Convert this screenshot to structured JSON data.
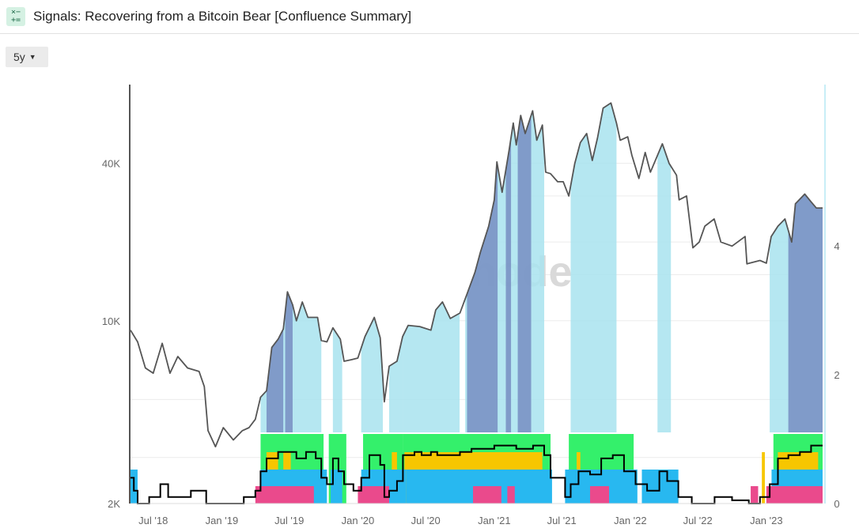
{
  "header": {
    "title": "Signals: Recovering from a Bitcoin Bear [Confluence Summary]",
    "icon": "calculator-icon"
  },
  "controls": {
    "range_label": "5y",
    "range_icon": "caret-down-icon"
  },
  "watermark": "glassnode",
  "colors": {
    "price": "#555555",
    "confluence": "#000000",
    "band_light": "#a8e3ef",
    "band_dark": "#7a92c4",
    "strip_green": "#34f06b",
    "strip_yellow": "#f7c600",
    "strip_blue": "#28b8f0",
    "strip_pink": "#ea4a8c"
  },
  "chart_data": {
    "type": "line",
    "y_scale": "log",
    "y_ticks": [
      "2K",
      "10K",
      "40K"
    ],
    "y_tick_values": [
      2000,
      10000,
      40000
    ],
    "y2_ticks": [
      "0",
      "2",
      "4"
    ],
    "y2_tick_values": [
      0,
      2,
      4
    ],
    "x_ticks": [
      "Jul '18",
      "Jan '19",
      "Jul '19",
      "Jan '20",
      "Jul '20",
      "Jan '21",
      "Jul '21",
      "Jan '22",
      "Jul '22",
      "Jan '23"
    ],
    "x_tick_dates": [
      "2018-07-01",
      "2019-01-01",
      "2019-07-01",
      "2020-01-01",
      "2020-07-01",
      "2021-01-01",
      "2021-07-01",
      "2022-01-01",
      "2022-07-01",
      "2023-01-01"
    ],
    "x_range": [
      "2018-05-01",
      "2023-06-01"
    ],
    "y_range": [
      2000,
      80000
    ],
    "y2_range": [
      0,
      6.5
    ],
    "series": [
      {
        "kind": "price",
        "points": [
          [
            "2018-05-01",
            9200
          ],
          [
            "2018-05-20",
            8300
          ],
          [
            "2018-06-10",
            6600
          ],
          [
            "2018-07-01",
            6300
          ],
          [
            "2018-07-25",
            8200
          ],
          [
            "2018-08-15",
            6300
          ],
          [
            "2018-09-05",
            7300
          ],
          [
            "2018-10-01",
            6600
          ],
          [
            "2018-11-01",
            6400
          ],
          [
            "2018-11-15",
            5600
          ],
          [
            "2018-11-25",
            3800
          ],
          [
            "2018-12-15",
            3300
          ],
          [
            "2019-01-05",
            3900
          ],
          [
            "2019-02-01",
            3500
          ],
          [
            "2019-02-25",
            3800
          ],
          [
            "2019-03-15",
            3900
          ],
          [
            "2019-04-01",
            4200
          ],
          [
            "2019-04-15",
            5100
          ],
          [
            "2019-05-01",
            5400
          ],
          [
            "2019-05-15",
            7900
          ],
          [
            "2019-06-01",
            8500
          ],
          [
            "2019-06-15",
            9300
          ],
          [
            "2019-06-26",
            12900
          ],
          [
            "2019-07-10",
            11500
          ],
          [
            "2019-07-20",
            10000
          ],
          [
            "2019-08-05",
            11800
          ],
          [
            "2019-08-20",
            10300
          ],
          [
            "2019-09-15",
            10300
          ],
          [
            "2019-09-25",
            8400
          ],
          [
            "2019-10-10",
            8300
          ],
          [
            "2019-10-26",
            9400
          ],
          [
            "2019-11-15",
            8500
          ],
          [
            "2019-11-25",
            7000
          ],
          [
            "2019-12-15",
            7100
          ],
          [
            "2020-01-01",
            7200
          ],
          [
            "2020-01-20",
            8700
          ],
          [
            "2020-02-14",
            10300
          ],
          [
            "2020-03-01",
            8600
          ],
          [
            "2020-03-12",
            4900
          ],
          [
            "2020-03-25",
            6700
          ],
          [
            "2020-04-15",
            7000
          ],
          [
            "2020-04-30",
            8700
          ],
          [
            "2020-05-15",
            9600
          ],
          [
            "2020-06-15",
            9500
          ],
          [
            "2020-07-15",
            9200
          ],
          [
            "2020-07-28",
            11000
          ],
          [
            "2020-08-15",
            11800
          ],
          [
            "2020-09-05",
            10200
          ],
          [
            "2020-10-01",
            10700
          ],
          [
            "2020-10-21",
            12800
          ],
          [
            "2020-11-10",
            15300
          ],
          [
            "2020-11-25",
            18300
          ],
          [
            "2020-12-17",
            23000
          ],
          [
            "2021-01-01",
            29000
          ],
          [
            "2021-01-08",
            40500
          ],
          [
            "2021-01-22",
            31000
          ],
          [
            "2021-02-10",
            45000
          ],
          [
            "2021-02-21",
            57000
          ],
          [
            "2021-03-01",
            47000
          ],
          [
            "2021-03-13",
            61000
          ],
          [
            "2021-03-25",
            52000
          ],
          [
            "2021-04-14",
            63500
          ],
          [
            "2021-04-25",
            49000
          ],
          [
            "2021-05-10",
            56000
          ],
          [
            "2021-05-19",
            37000
          ],
          [
            "2021-06-01",
            36500
          ],
          [
            "2021-06-20",
            34000
          ],
          [
            "2021-07-05",
            34000
          ],
          [
            "2021-07-20",
            30000
          ],
          [
            "2021-08-05",
            40000
          ],
          [
            "2021-08-20",
            48000
          ],
          [
            "2021-09-06",
            52000
          ],
          [
            "2021-09-21",
            41000
          ],
          [
            "2021-10-05",
            50000
          ],
          [
            "2021-10-20",
            65000
          ],
          [
            "2021-11-10",
            68000
          ],
          [
            "2021-11-25",
            57000
          ],
          [
            "2021-12-05",
            49000
          ],
          [
            "2021-12-25",
            50500
          ],
          [
            "2022-01-05",
            43000
          ],
          [
            "2022-01-24",
            35000
          ],
          [
            "2022-02-10",
            44000
          ],
          [
            "2022-02-24",
            37000
          ],
          [
            "2022-03-28",
            47500
          ],
          [
            "2022-04-15",
            40000
          ],
          [
            "2022-05-05",
            36000
          ],
          [
            "2022-05-12",
            29000
          ],
          [
            "2022-06-01",
            30000
          ],
          [
            "2022-06-18",
            19000
          ],
          [
            "2022-07-05",
            20000
          ],
          [
            "2022-07-20",
            23000
          ],
          [
            "2022-08-14",
            24500
          ],
          [
            "2022-09-01",
            20000
          ],
          [
            "2022-10-01",
            19300
          ],
          [
            "2022-11-05",
            21000
          ],
          [
            "2022-11-10",
            16500
          ],
          [
            "2022-12-15",
            17000
          ],
          [
            "2023-01-01",
            16600
          ],
          [
            "2023-01-14",
            21000
          ],
          [
            "2023-02-01",
            23000
          ],
          [
            "2023-02-20",
            24500
          ],
          [
            "2023-03-10",
            20000
          ],
          [
            "2023-03-20",
            28000
          ],
          [
            "2023-04-14",
            30500
          ],
          [
            "2023-05-01",
            28500
          ],
          [
            "2023-05-15",
            27000
          ],
          [
            "2023-06-01",
            27000
          ]
        ]
      },
      {
        "kind": "confluence",
        "points": [
          [
            "2018-05-01",
            0.4
          ],
          [
            "2018-05-10",
            0.2
          ],
          [
            "2018-05-20",
            0
          ],
          [
            "2018-06-10",
            0
          ],
          [
            "2018-06-20",
            0.1
          ],
          [
            "2018-07-05",
            0.1
          ],
          [
            "2018-07-20",
            0.3
          ],
          [
            "2018-08-10",
            0.1
          ],
          [
            "2018-09-15",
            0.1
          ],
          [
            "2018-10-10",
            0.2
          ],
          [
            "2018-11-20",
            0
          ],
          [
            "2019-02-15",
            0
          ],
          [
            "2019-03-01",
            0.1
          ],
          [
            "2019-04-01",
            0.2
          ],
          [
            "2019-04-15",
            0.5
          ],
          [
            "2019-05-01",
            0.7
          ],
          [
            "2019-06-01",
            0.8
          ],
          [
            "2019-07-20",
            0.7
          ],
          [
            "2019-08-15",
            0.8
          ],
          [
            "2019-09-10",
            0.7
          ],
          [
            "2019-09-25",
            0.4
          ],
          [
            "2019-10-10",
            0.3
          ],
          [
            "2019-10-26",
            0.7
          ],
          [
            "2019-11-10",
            0.5
          ],
          [
            "2019-11-25",
            0.3
          ],
          [
            "2019-12-20",
            0.2
          ],
          [
            "2020-01-10",
            0.4
          ],
          [
            "2020-02-01",
            0.75
          ],
          [
            "2020-03-01",
            0.6
          ],
          [
            "2020-03-12",
            0.1
          ],
          [
            "2020-03-25",
            0.2
          ],
          [
            "2020-04-15",
            0.35
          ],
          [
            "2020-05-01",
            0.75
          ],
          [
            "2020-06-01",
            0.8
          ],
          [
            "2020-06-20",
            0.75
          ],
          [
            "2020-07-15",
            0.8
          ],
          [
            "2020-08-01",
            0.75
          ],
          [
            "2020-10-01",
            0.8
          ],
          [
            "2020-11-01",
            0.85
          ],
          [
            "2021-01-01",
            0.9
          ],
          [
            "2021-03-01",
            0.85
          ],
          [
            "2021-04-15",
            0.9
          ],
          [
            "2021-05-15",
            0.75
          ],
          [
            "2021-06-01",
            0.4
          ],
          [
            "2021-07-10",
            0.1
          ],
          [
            "2021-07-25",
            0.3
          ],
          [
            "2021-08-15",
            0.5
          ],
          [
            "2021-09-15",
            0.45
          ],
          [
            "2021-10-15",
            0.7
          ],
          [
            "2021-11-15",
            0.75
          ],
          [
            "2021-12-15",
            0.5
          ],
          [
            "2022-01-15",
            0.3
          ],
          [
            "2022-02-15",
            0.2
          ],
          [
            "2022-03-20",
            0.5
          ],
          [
            "2022-04-10",
            0.35
          ],
          [
            "2022-05-10",
            0.1
          ],
          [
            "2022-06-15",
            0
          ],
          [
            "2022-08-15",
            0.1
          ],
          [
            "2022-10-01",
            0.05
          ],
          [
            "2022-11-15",
            0
          ],
          [
            "2022-12-15",
            0.1
          ],
          [
            "2023-01-10",
            0.3
          ],
          [
            "2023-02-01",
            0.7
          ],
          [
            "2023-03-01",
            0.75
          ],
          [
            "2023-04-01",
            0.8
          ],
          [
            "2023-05-01",
            0.9
          ],
          [
            "2023-06-01",
            0.9
          ]
        ]
      }
    ],
    "signal_bands": [
      [
        "2019-04-15",
        "2019-09-25",
        "light"
      ],
      [
        "2019-10-26",
        "2019-11-20",
        "light"
      ],
      [
        "2020-01-10",
        "2020-03-08",
        "light"
      ],
      [
        "2020-03-25",
        "2020-05-01",
        "light"
      ],
      [
        "2020-05-01",
        "2020-09-30",
        "light"
      ],
      [
        "2020-10-15",
        "2021-05-15",
        "light"
      ],
      [
        "2021-07-25",
        "2021-11-25",
        "light"
      ],
      [
        "2022-03-15",
        "2022-04-20",
        "light"
      ],
      [
        "2023-01-10",
        "2023-06-01",
        "light"
      ],
      [
        "2019-05-01",
        "2019-06-15",
        "dark"
      ],
      [
        "2019-06-20",
        "2019-07-10",
        "dark"
      ],
      [
        "2020-10-20",
        "2021-01-10",
        "dark"
      ],
      [
        "2021-02-01",
        "2021-02-15",
        "dark"
      ],
      [
        "2021-03-05",
        "2021-04-10",
        "dark"
      ],
      [
        "2023-03-01",
        "2023-06-01",
        "dark"
      ]
    ],
    "strips": [
      {
        "color": "green",
        "ranges": [
          [
            "2019-04-15",
            "2019-10-01"
          ],
          [
            "2019-10-15",
            "2019-12-01"
          ],
          [
            "2020-01-15",
            "2020-05-01"
          ],
          [
            "2020-05-01",
            "2021-06-01"
          ],
          [
            "2021-07-20",
            "2022-01-10"
          ],
          [
            "2023-01-20",
            "2023-06-01"
          ]
        ]
      },
      {
        "color": "yellow",
        "ranges": [
          [
            "2019-05-01",
            "2019-06-01"
          ],
          [
            "2019-06-15",
            "2019-07-05"
          ],
          [
            "2020-04-01",
            "2020-04-15"
          ],
          [
            "2020-05-05",
            "2021-05-10"
          ],
          [
            "2021-08-10",
            "2021-08-20"
          ],
          [
            "2022-12-20",
            "2022-12-28"
          ],
          [
            "2023-02-01",
            "2023-05-20"
          ]
        ]
      },
      {
        "color": "blue",
        "ranges": [
          [
            "2018-05-01",
            "2018-05-20"
          ],
          [
            "2019-04-15",
            "2019-10-10"
          ],
          [
            "2019-10-20",
            "2019-11-20"
          ],
          [
            "2020-01-10",
            "2020-05-10"
          ],
          [
            "2020-05-10",
            "2021-06-05"
          ],
          [
            "2021-07-10",
            "2022-01-20"
          ],
          [
            "2022-02-01",
            "2022-05-10"
          ],
          [
            "2023-01-15",
            "2023-06-01"
          ]
        ]
      },
      {
        "color": "pink",
        "ranges": [
          [
            "2019-04-01",
            "2019-09-05"
          ],
          [
            "2020-01-01",
            "2020-03-25"
          ],
          [
            "2020-11-05",
            "2021-01-20"
          ],
          [
            "2021-02-05",
            "2021-02-25"
          ],
          [
            "2021-09-15",
            "2021-11-05"
          ],
          [
            "2022-11-20",
            "2022-12-10"
          ],
          [
            "2023-01-01",
            "2023-06-01"
          ]
        ]
      }
    ]
  }
}
